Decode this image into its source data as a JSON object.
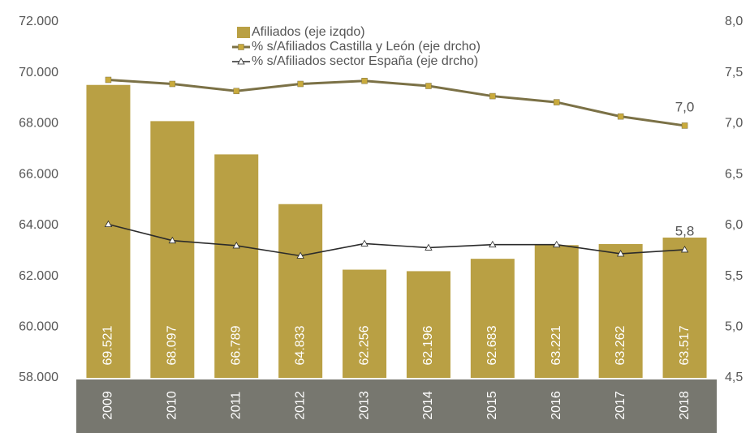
{
  "chart_data": {
    "type": "bar",
    "categories": [
      "2009",
      "2010",
      "2011",
      "2012",
      "2013",
      "2014",
      "2015",
      "2016",
      "2017",
      "2018"
    ],
    "series": [
      {
        "name": "Afiliados (eje izqdo)",
        "type": "bar",
        "color": "#b9a044",
        "values": [
          69521,
          68097,
          66789,
          64833,
          62256,
          62196,
          62683,
          63221,
          63262,
          63517
        ],
        "value_labels": [
          "69.521",
          "68.097",
          "66.789",
          "64.833",
          "62.256",
          "62.196",
          "62.683",
          "63.221",
          "63.262",
          "63.517"
        ]
      },
      {
        "name": "% s/Afiliados Castilla y León (eje drcho)",
        "type": "line",
        "axis": "y2",
        "color": "#7b7146",
        "marker": "square",
        "marker_color": "#c9aa3c",
        "values": [
          7.43,
          7.39,
          7.32,
          7.39,
          7.42,
          7.37,
          7.27,
          7.21,
          7.07,
          6.98
        ],
        "value_labels": [
          null,
          null,
          null,
          null,
          null,
          null,
          null,
          null,
          null,
          "7,0"
        ]
      },
      {
        "name": "% s/Afiliados sector España (eje drcho)",
        "type": "line",
        "axis": "y2",
        "color": "#2b2b2b",
        "marker": "triangle",
        "marker_color": "#ffffff",
        "values": [
          6.01,
          5.85,
          5.8,
          5.7,
          5.82,
          5.78,
          5.81,
          5.81,
          5.72,
          5.76
        ],
        "value_labels": [
          null,
          null,
          null,
          null,
          null,
          null,
          null,
          null,
          null,
          "5,8"
        ]
      }
    ],
    "ylim": [
      58000,
      72000
    ],
    "yticks": [
      {
        "value": 58000,
        "label": "58.000"
      },
      {
        "value": 60000,
        "label": "60.000"
      },
      {
        "value": 62000,
        "label": "62.000"
      },
      {
        "value": 64000,
        "label": "64.000"
      },
      {
        "value": 66000,
        "label": "66.000"
      },
      {
        "value": 68000,
        "label": "68.000"
      },
      {
        "value": 70000,
        "label": "70.000"
      },
      {
        "value": 72000,
        "label": "72.000"
      }
    ],
    "y2lim": [
      4.5,
      8.0
    ],
    "y2ticks": [
      {
        "value": 4.5,
        "label": "4,5"
      },
      {
        "value": 5.0,
        "label": "5,0"
      },
      {
        "value": 5.5,
        "label": "5,5"
      },
      {
        "value": 6.0,
        "label": "6,0"
      },
      {
        "value": 6.5,
        "label": "6,5"
      },
      {
        "value": 7.0,
        "label": "7,0"
      },
      {
        "value": 7.5,
        "label": "7,5"
      },
      {
        "value": 8.0,
        "label": "8,0"
      }
    ],
    "grid": false,
    "legend": "top"
  }
}
